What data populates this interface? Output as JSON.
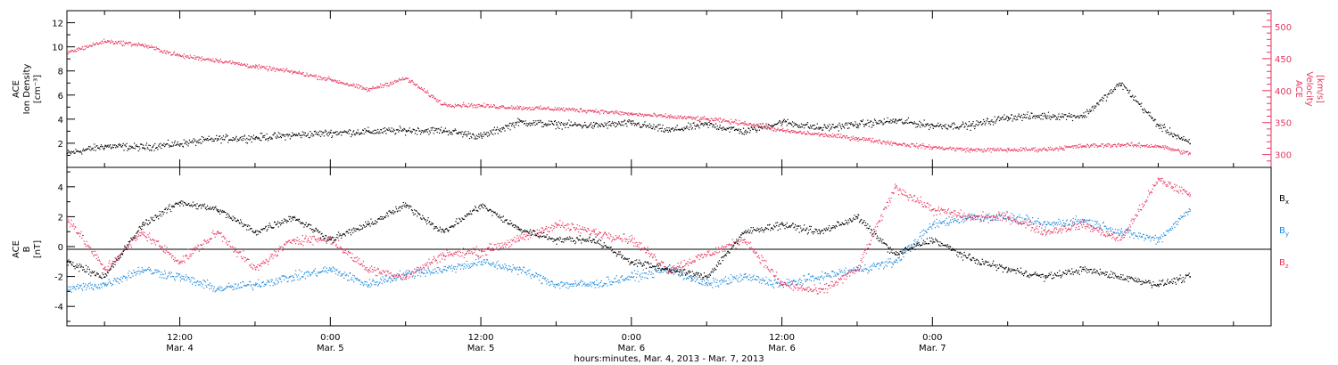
{
  "chart_data": [
    {
      "type": "scatter",
      "panel": "top",
      "left_axis": {
        "label_lines": [
          "ACE",
          "Ion Density",
          "[cm⁻³]"
        ],
        "ticks": [
          "2",
          "4",
          "6",
          "8",
          "10",
          "12"
        ],
        "range": [
          0,
          13
        ]
      },
      "right_axis": {
        "label_lines": [
          "ACE",
          "Velocity",
          "[km/s]"
        ],
        "ticks": [
          "300",
          "350",
          "400",
          "450",
          "500"
        ],
        "range": [
          280,
          525
        ]
      },
      "series": [
        {
          "key": "density",
          "axis": "left",
          "color": "#000000",
          "x": [
            0,
            3,
            6,
            9,
            12,
            15,
            18,
            21,
            24,
            27,
            30,
            33,
            36,
            39,
            42,
            45,
            48,
            51,
            54,
            57,
            60,
            63,
            66,
            69,
            72,
            75,
            78,
            81,
            84,
            87,
            89.5
          ],
          "values": [
            1.2,
            1.8,
            1.7,
            2.0,
            2.4,
            2.5,
            2.7,
            2.9,
            3.0,
            3.1,
            3.1,
            2.6,
            3.8,
            3.6,
            3.5,
            3.7,
            3.1,
            3.6,
            3.0,
            3.8,
            3.3,
            3.6,
            3.9,
            3.5,
            3.5,
            4.2,
            4.3,
            4.3,
            7.0,
            3.5,
            2.0
          ]
        },
        {
          "key": "velocity",
          "axis": "right",
          "color": "#e8355e",
          "x": [
            0,
            3,
            6,
            9,
            12,
            15,
            18,
            21,
            24,
            27,
            30,
            33,
            36,
            39,
            42,
            45,
            48,
            51,
            54,
            57,
            60,
            63,
            66,
            69,
            72,
            75,
            78,
            81,
            84,
            87,
            89.5
          ],
          "values": [
            460,
            478,
            472,
            455,
            448,
            438,
            430,
            418,
            402,
            420,
            379,
            377,
            374,
            372,
            369,
            364,
            360,
            356,
            350,
            338,
            332,
            326,
            318,
            312,
            308,
            308,
            309,
            314,
            316,
            314,
            302
          ]
        }
      ]
    },
    {
      "type": "scatter",
      "panel": "bottom",
      "left_axis": {
        "label_lines": [
          "ACE",
          "B",
          "[nT]"
        ],
        "ticks": [
          "-4",
          "-2",
          "0",
          "2",
          "4"
        ],
        "range": [
          -5.3,
          5.3
        ]
      },
      "legend": {
        "placement": "right",
        "entries": [
          {
            "text": "B",
            "sub": "x",
            "color": "#000000"
          },
          {
            "text": "B",
            "sub": "y",
            "color": "#1f8bdc"
          },
          {
            "text": "B",
            "sub": "z",
            "color": "#e8355e"
          }
        ]
      },
      "series": [
        {
          "key": "Bx",
          "color": "#000000",
          "x": [
            0,
            3,
            6,
            9,
            12,
            15,
            18,
            21,
            24,
            27,
            30,
            33,
            36,
            39,
            42,
            45,
            48,
            51,
            54,
            57,
            60,
            63,
            66,
            69,
            72,
            75,
            78,
            81,
            84,
            87,
            89.5
          ],
          "values": [
            -1.0,
            -2.0,
            1.5,
            3.0,
            2.5,
            1.0,
            2.0,
            0.5,
            1.5,
            2.8,
            1.0,
            2.8,
            1.2,
            0.5,
            0.5,
            -1.0,
            -1.5,
            -2.0,
            1.0,
            1.5,
            1.0,
            2.0,
            -0.5,
            0.5,
            -0.8,
            -1.5,
            -2.0,
            -1.5,
            -2.0,
            -2.5,
            -2.0
          ]
        },
        {
          "key": "By",
          "color": "#1f8bdc",
          "x": [
            0,
            3,
            6,
            9,
            12,
            15,
            18,
            21,
            24,
            27,
            30,
            33,
            36,
            39,
            42,
            45,
            48,
            51,
            54,
            57,
            60,
            63,
            66,
            69,
            72,
            75,
            78,
            81,
            84,
            87,
            89.5
          ],
          "values": [
            -2.8,
            -2.5,
            -1.5,
            -2.0,
            -2.8,
            -2.5,
            -2.0,
            -1.5,
            -2.5,
            -1.8,
            -1.5,
            -1.0,
            -1.5,
            -2.5,
            -2.5,
            -2.0,
            -1.5,
            -2.5,
            -2.0,
            -2.5,
            -2.0,
            -1.5,
            -1.0,
            1.5,
            2.0,
            2.0,
            1.5,
            1.8,
            1.0,
            0.5,
            2.5
          ]
        },
        {
          "key": "Bz",
          "color": "#e8355e",
          "x": [
            0,
            3,
            6,
            9,
            12,
            15,
            18,
            21,
            24,
            27,
            30,
            33,
            36,
            39,
            42,
            45,
            48,
            51,
            54,
            57,
            60,
            63,
            66,
            69,
            72,
            75,
            78,
            81,
            84,
            87,
            89.5
          ],
          "values": [
            2.0,
            -1.5,
            1.0,
            -1.0,
            1.0,
            -1.5,
            0.5,
            0.5,
            -1.5,
            -2.0,
            -0.5,
            -0.3,
            0.5,
            1.5,
            1.0,
            0.5,
            -1.5,
            -0.5,
            0.5,
            -2.5,
            -3.0,
            -1.5,
            4.0,
            2.5,
            2.0,
            2.0,
            1.0,
            1.5,
            0.5,
            4.5,
            3.5
          ]
        }
      ]
    }
  ],
  "time_axis": {
    "range_hours": [
      0,
      96
    ],
    "ticks": [
      {
        "h": 9,
        "time": "12:00",
        "date": "Mar. 4"
      },
      {
        "h": 21,
        "time": "0:00",
        "date": "Mar. 5"
      },
      {
        "h": 33,
        "time": "12:00",
        "date": "Mar. 5"
      },
      {
        "h": 45,
        "time": "0:00",
        "date": "Mar. 6"
      },
      {
        "h": 57,
        "time": "12:00",
        "date": "Mar. 6"
      },
      {
        "h": 69,
        "time": "0:00",
        "date": "Mar. 7"
      }
    ],
    "xlabel": "hours:minutes, Mar.  4, 2013 - Mar.  7, 2013"
  }
}
